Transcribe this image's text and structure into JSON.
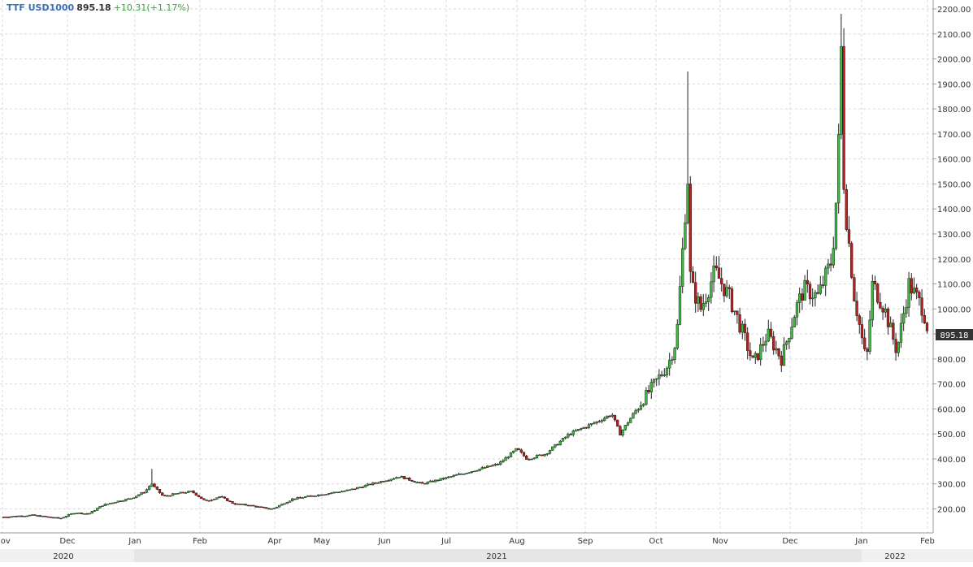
{
  "header": {
    "symbol": "TTF USD1000",
    "last": "895.18",
    "change": "+10.31(+1.17%)"
  },
  "colors": {
    "up": "#3cb93c",
    "down": "#b81c1c",
    "grid": "#d9d9d9",
    "price_tag_bg": "#333333"
  },
  "chart_data": {
    "type": "candlestick",
    "title": "",
    "xlabel": "",
    "ylabel": "",
    "ylim": [
      130,
      2220
    ],
    "y_ticks": [
      "200.00",
      "300.00",
      "400.00",
      "500.00",
      "600.00",
      "700.00",
      "800.00",
      "900.00",
      "1000.00",
      "1100.00",
      "1200.00",
      "1300.00",
      "1400.00",
      "1500.00",
      "1600.00",
      "1700.00",
      "1800.00",
      "1900.00",
      "2000.00",
      "2100.00",
      "2200.00"
    ],
    "x_month_labels": [
      "Nov",
      "Dec",
      "Jan",
      "Feb",
      "Apr",
      "May",
      "Jun",
      "Jul",
      "Aug",
      "Sep",
      "Oct",
      "Nov",
      "Dec",
      "Jan",
      "Feb"
    ],
    "x_year_labels": [
      "2020",
      "2021",
      "2022"
    ],
    "last_price_tag": "895.18",
    "x_range": [
      "2020-11-01",
      "2022-02-03"
    ],
    "series": [
      {
        "date": "2020-11-02",
        "close": 168
      },
      {
        "date": "2020-11-16",
        "close": 175
      },
      {
        "date": "2020-11-30",
        "close": 162
      },
      {
        "date": "2020-12-07",
        "close": 185
      },
      {
        "date": "2020-12-14",
        "close": 180
      },
      {
        "date": "2020-12-21",
        "close": 215
      },
      {
        "date": "2020-12-28",
        "close": 230
      },
      {
        "date": "2021-01-04",
        "close": 242
      },
      {
        "date": "2021-01-11",
        "close": 270
      },
      {
        "date": "2021-01-14",
        "close": 300,
        "high": 360
      },
      {
        "date": "2021-01-20",
        "close": 250
      },
      {
        "date": "2021-01-27",
        "close": 262
      },
      {
        "date": "2021-02-03",
        "close": 270
      },
      {
        "date": "2021-02-10",
        "close": 230
      },
      {
        "date": "2021-02-17",
        "close": 250
      },
      {
        "date": "2021-02-24",
        "close": 220
      },
      {
        "date": "2021-03-03",
        "close": 215
      },
      {
        "date": "2021-03-10",
        "close": 205
      },
      {
        "date": "2021-03-15",
        "close": 200
      },
      {
        "date": "2021-03-25",
        "close": 240
      },
      {
        "date": "2021-04-08",
        "close": 258
      },
      {
        "date": "2021-04-22",
        "close": 275
      },
      {
        "date": "2021-05-03",
        "close": 300
      },
      {
        "date": "2021-05-17",
        "close": 330
      },
      {
        "date": "2021-05-28",
        "close": 300
      },
      {
        "date": "2021-06-07",
        "close": 320
      },
      {
        "date": "2021-06-21",
        "close": 350
      },
      {
        "date": "2021-07-05",
        "close": 380
      },
      {
        "date": "2021-07-14",
        "close": 440
      },
      {
        "date": "2021-07-19",
        "close": 400
      },
      {
        "date": "2021-07-28",
        "close": 420
      },
      {
        "date": "2021-08-09",
        "close": 500
      },
      {
        "date": "2021-08-23",
        "close": 550
      },
      {
        "date": "2021-08-30",
        "close": 580
      },
      {
        "date": "2021-09-03",
        "close": 500
      },
      {
        "date": "2021-09-13",
        "close": 620
      },
      {
        "date": "2021-09-27",
        "close": 780
      },
      {
        "date": "2021-10-01",
        "close": 880
      },
      {
        "date": "2021-10-05",
        "close": 1350
      },
      {
        "date": "2021-10-06",
        "close": 1500,
        "high": 1950
      },
      {
        "date": "2021-10-08",
        "close": 1100
      },
      {
        "date": "2021-10-13",
        "close": 1000
      },
      {
        "date": "2021-10-20",
        "close": 1150
      },
      {
        "date": "2021-10-27",
        "close": 1050
      },
      {
        "date": "2021-11-03",
        "close": 900
      },
      {
        "date": "2021-11-08",
        "close": 780
      },
      {
        "date": "2021-11-15",
        "close": 900
      },
      {
        "date": "2021-11-22",
        "close": 800
      },
      {
        "date": "2021-11-29",
        "close": 1000
      },
      {
        "date": "2021-12-03",
        "close": 1080
      },
      {
        "date": "2021-12-10",
        "close": 1050
      },
      {
        "date": "2021-12-17",
        "close": 1200
      },
      {
        "date": "2021-12-20",
        "close": 1550
      },
      {
        "date": "2021-12-21",
        "close": 2050,
        "high": 2180
      },
      {
        "date": "2021-12-23",
        "close": 1450
      },
      {
        "date": "2021-12-28",
        "close": 1050
      },
      {
        "date": "2022-01-03",
        "close": 780
      },
      {
        "date": "2022-01-06",
        "close": 1100
      },
      {
        "date": "2022-01-12",
        "close": 1000
      },
      {
        "date": "2022-01-18",
        "close": 830
      },
      {
        "date": "2022-01-24",
        "close": 1100
      },
      {
        "date": "2022-01-31",
        "close": 1000
      },
      {
        "date": "2022-02-03",
        "close": 895
      }
    ]
  }
}
